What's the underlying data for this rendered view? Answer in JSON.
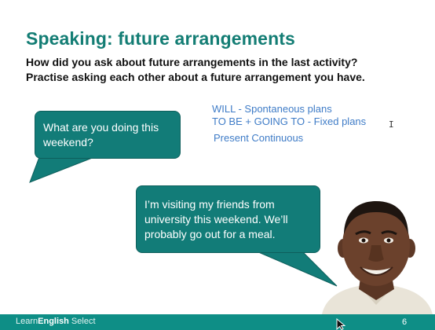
{
  "slide": {
    "title": "Speaking: future arrangements",
    "subtitle_line1": "How did you ask about future arrangements in the last activity?",
    "subtitle_line2": "Practise asking each other about a future arrangement you have."
  },
  "notes": {
    "line1": "WILL - Spontaneous plans",
    "line2": "TO BE + GOING TO - Fixed plans",
    "line3": "Present Continuous"
  },
  "bubbles": {
    "question": "What are you doing this weekend?",
    "answer": "I’m visiting my friends from university this weekend.  We’ll probably go out for a meal."
  },
  "footer": {
    "brand_part1": "Learn",
    "brand_part2": "English",
    "brand_part3": " Select",
    "page_number": "6"
  },
  "colors": {
    "title": "#137d74",
    "bubble": "#127c78",
    "notes_text": "#3f7cc7",
    "footer": "#0e8e86"
  }
}
